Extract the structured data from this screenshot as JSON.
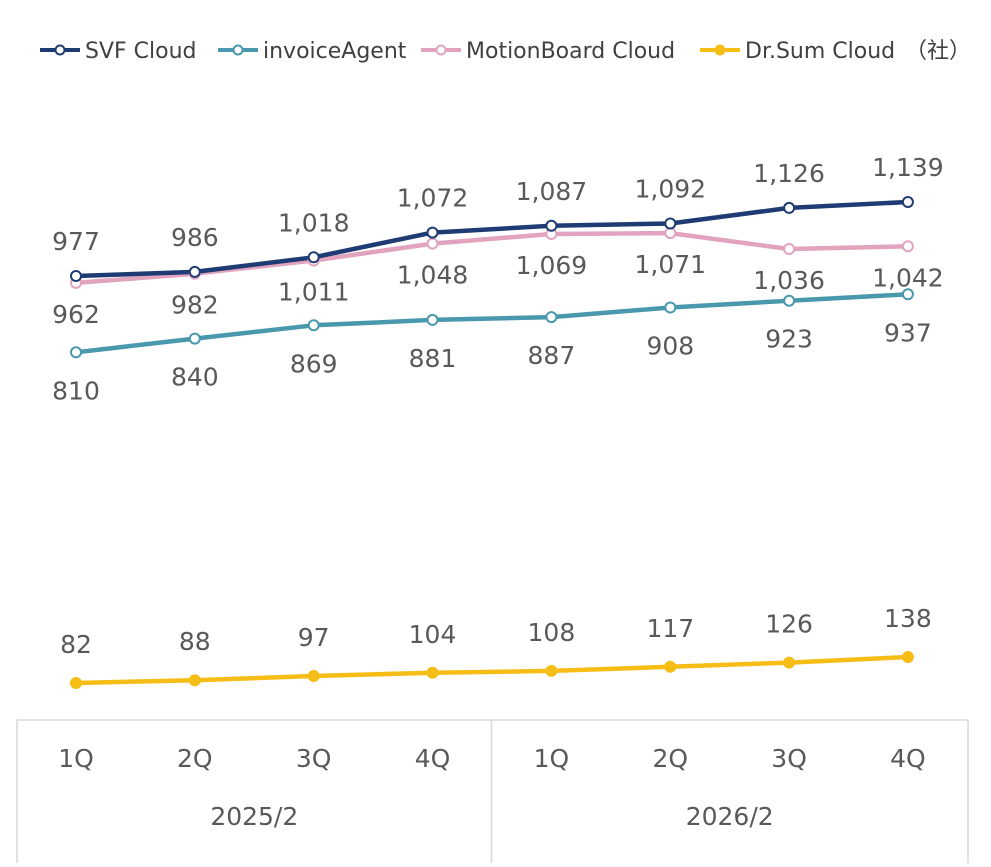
{
  "chart_data": {
    "type": "line",
    "categories": [
      "1Q",
      "2Q",
      "3Q",
      "4Q",
      "1Q",
      "2Q",
      "3Q",
      "4Q"
    ],
    "category_groups": [
      {
        "label": "2025/2",
        "count": 4
      },
      {
        "label": "2026/2",
        "count": 4
      }
    ],
    "unit_label": "（社）",
    "title": "",
    "xlabel": "",
    "ylabel": "",
    "y_axis_visible": false,
    "grid": false,
    "legend_position": "top",
    "series": [
      {
        "name": "SVF Cloud",
        "color": "#1f3b73",
        "marker": "hollow-circle",
        "values": [
          977,
          986,
          1018,
          1072,
          1087,
          1092,
          1126,
          1139
        ],
        "labels": [
          "977",
          "986",
          "1,018",
          "1,072",
          "1,087",
          "1,092",
          "1,126",
          "1,139"
        ]
      },
      {
        "name": "invoiceAgent",
        "color": "#4a98ad",
        "marker": "hollow-circle",
        "values": [
          810,
          840,
          869,
          881,
          887,
          908,
          923,
          937
        ],
        "labels": [
          "810",
          "840",
          "869",
          "881",
          "887",
          "908",
          "923",
          "937"
        ]
      },
      {
        "name": "MotionBoard Cloud",
        "color": "#e1a3be",
        "marker": "hollow-circle",
        "values": [
          962,
          982,
          1011,
          1048,
          1069,
          1071,
          1036,
          1042
        ],
        "labels": [
          "962",
          "982",
          "1,011",
          "1,048",
          "1,069",
          "1,071",
          "1,036",
          "1,042"
        ]
      },
      {
        "name": "Dr.Sum Cloud",
        "color": "#f6bd16",
        "marker": "filled-circle",
        "values": [
          82,
          88,
          97,
          104,
          108,
          117,
          126,
          138
        ],
        "labels": [
          "82",
          "88",
          "97",
          "104",
          "108",
          "117",
          "126",
          "138"
        ]
      }
    ]
  }
}
